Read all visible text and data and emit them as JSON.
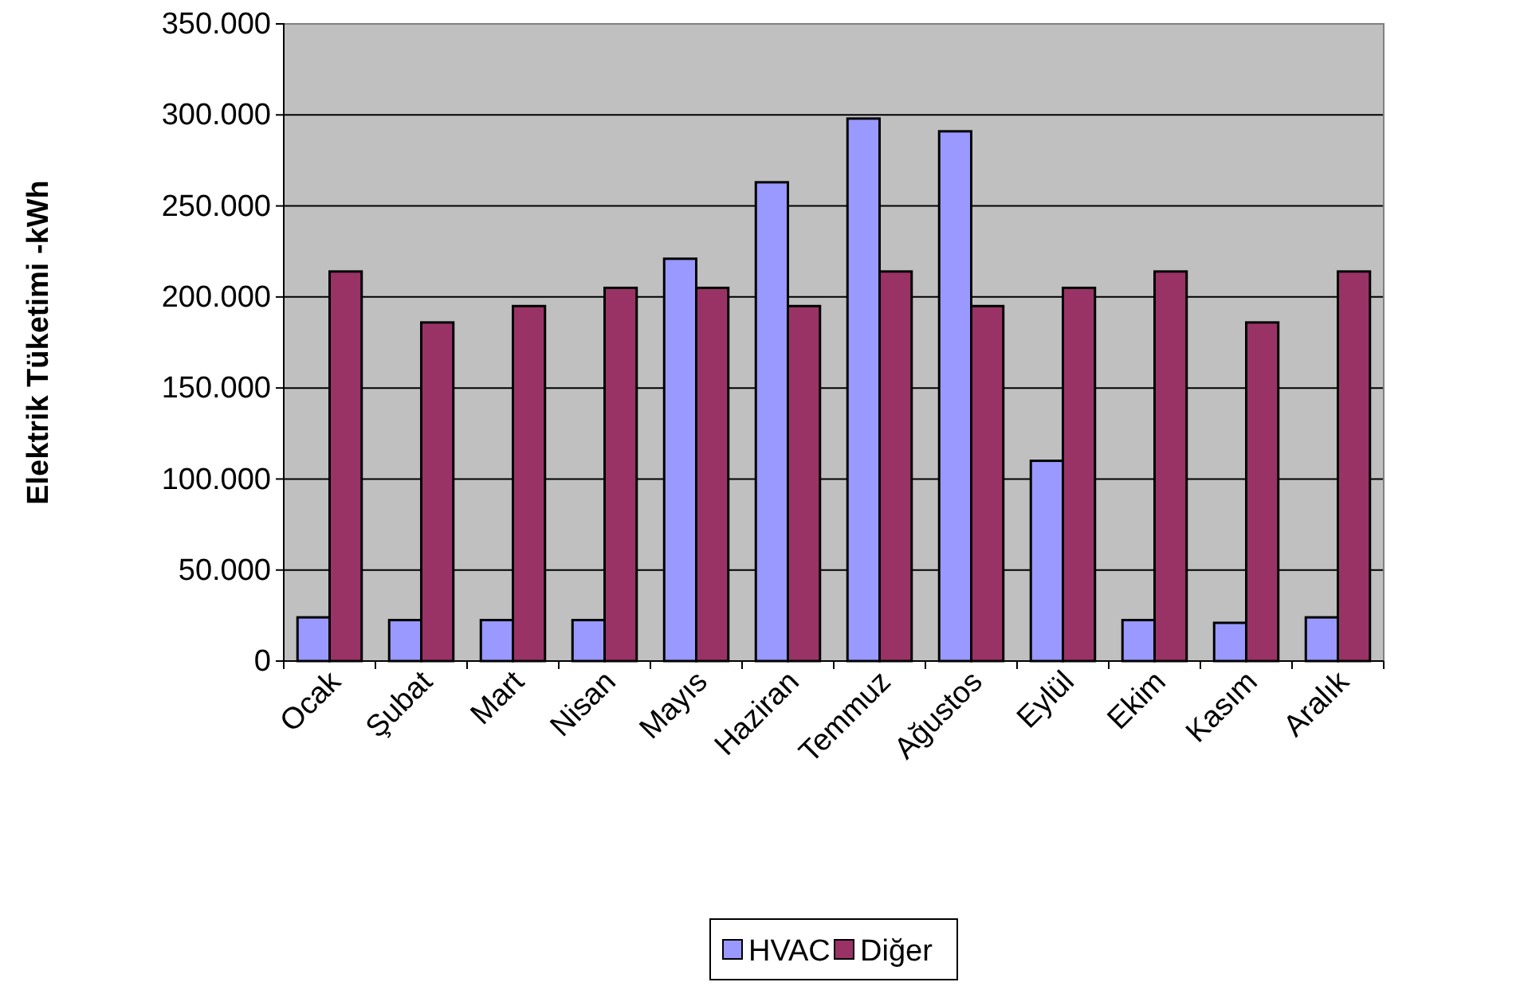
{
  "chart_data": {
    "type": "bar",
    "ylabel": "Elektrik Tüketimi -kWh",
    "categories": [
      "Ocak",
      "Şubat",
      "Mart",
      "Nisan",
      "Mayıs",
      "Haziran",
      "Temmuz",
      "Ağustos",
      "Eylül",
      "Ekim",
      "Kasım",
      "Aralık"
    ],
    "series": [
      {
        "name": "HVAC",
        "color": "#9999ff",
        "values": [
          24000,
          22500,
          22500,
          22500,
          221000,
          263000,
          298000,
          291000,
          110000,
          22500,
          21000,
          24000
        ]
      },
      {
        "name": "Diğer",
        "color": "#993366",
        "values": [
          214000,
          186000,
          195000,
          205000,
          205000,
          195000,
          214000,
          195000,
          205000,
          214000,
          186000,
          214000
        ]
      }
    ],
    "ylim": [
      0,
      350000
    ],
    "yticks": [
      {
        "value": 0,
        "label": "0"
      },
      {
        "value": 50000,
        "label": "50.000"
      },
      {
        "value": 100000,
        "label": "100.000"
      },
      {
        "value": 150000,
        "label": "150.000"
      },
      {
        "value": 200000,
        "label": "200.000"
      },
      {
        "value": 250000,
        "label": "250.000"
      },
      {
        "value": 300000,
        "label": "300.000"
      },
      {
        "value": 350000,
        "label": "350.000"
      }
    ],
    "grid": "y",
    "legend": "bottom"
  }
}
